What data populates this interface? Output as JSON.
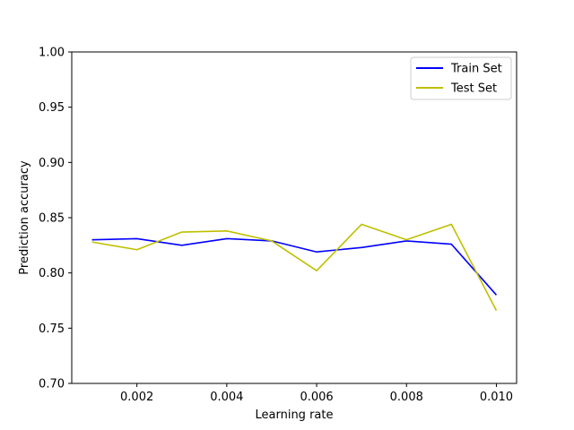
{
  "chart_data": {
    "type": "line",
    "title": "",
    "xlabel": "Learning rate",
    "ylabel": "Prediction accuracy",
    "xlim": [
      0.00055,
      0.01045
    ],
    "ylim": [
      0.7,
      1.0
    ],
    "xticks": [
      0.002,
      0.004,
      0.006,
      0.008,
      0.01
    ],
    "xtick_labels": [
      "0.002",
      "0.004",
      "0.006",
      "0.008",
      "0.010"
    ],
    "yticks": [
      0.7,
      0.75,
      0.8,
      0.85,
      0.9,
      0.95,
      1.0
    ],
    "ytick_labels": [
      "0.70",
      "0.75",
      "0.80",
      "0.85",
      "0.90",
      "0.95",
      "1.00"
    ],
    "grid": false,
    "legend_position": "top-right",
    "x": [
      0.001,
      0.002,
      0.003,
      0.004,
      0.005,
      0.006,
      0.007,
      0.008,
      0.009,
      0.01
    ],
    "series": [
      {
        "name": "Train Set",
        "color": "#0000ff",
        "values": [
          0.83,
          0.831,
          0.825,
          0.831,
          0.829,
          0.819,
          0.823,
          0.829,
          0.826,
          0.78
        ]
      },
      {
        "name": "Test Set",
        "color": "#bfbf00",
        "values": [
          0.828,
          0.821,
          0.837,
          0.838,
          0.829,
          0.802,
          0.844,
          0.83,
          0.844,
          0.766
        ]
      }
    ]
  }
}
